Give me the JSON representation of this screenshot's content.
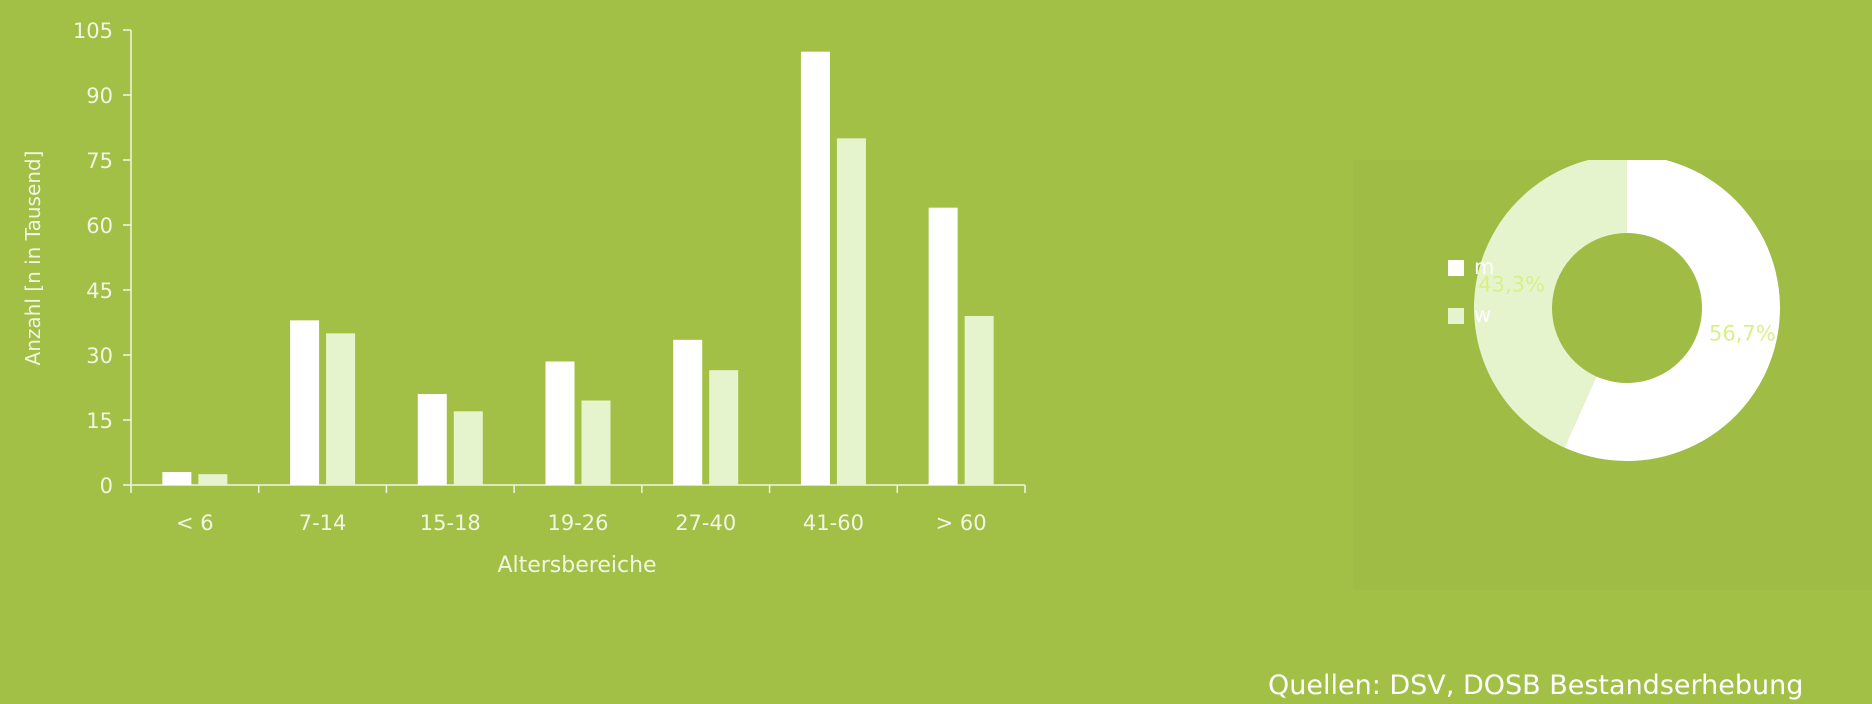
{
  "colors": {
    "background": "#a2bf46",
    "m": "#ffffff",
    "w": "#e6f4cd",
    "axis": "#f1f6e2",
    "pct_label": "#d9f08a"
  },
  "chart_data": [
    {
      "type": "bar",
      "categories": [
        "< 6",
        "7-14",
        "15-18",
        "19-26",
        "27-40",
        "41-60",
        "> 60"
      ],
      "series": [
        {
          "name": "m",
          "values": [
            3,
            38,
            21,
            28.5,
            33.5,
            100,
            64
          ]
        },
        {
          "name": "w",
          "values": [
            2.5,
            35,
            17,
            19.5,
            26.5,
            80,
            39
          ]
        }
      ],
      "yticks": [
        "0",
        "15",
        "30",
        "45",
        "60",
        "75",
        "90",
        "105"
      ],
      "ylim": [
        0,
        105
      ],
      "xlabel": "Altersbereiche",
      "ylabel": "Anzahl [n in Tausend]",
      "grid": false
    },
    {
      "type": "pie",
      "donut": true,
      "slices": [
        {
          "name": "m",
          "value": 56.7,
          "label": "56,7%"
        },
        {
          "name": "w",
          "value": 43.3,
          "label": "43,3%"
        }
      ],
      "legend": [
        "m",
        "w"
      ],
      "legend_position": "left"
    }
  ],
  "source": "Quellen: DSV, DOSB Bestandserhebung"
}
